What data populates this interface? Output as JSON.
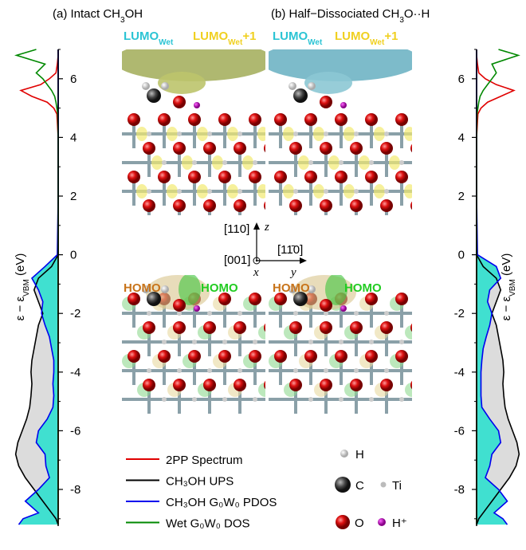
{
  "chart_data": {
    "type": "line",
    "panel_titles": [
      [
        "(a) Intact CH",
        "3",
        "OH"
      ],
      [
        "(b) Half−Dissociated CH",
        "3",
        "O··H"
      ]
    ],
    "y_label": [
      "ε − ε",
      "VBM",
      " (eV)"
    ],
    "ylim": [
      -9.25,
      7.0
    ],
    "yticks": [
      -8,
      -6,
      -4,
      -2,
      0,
      2,
      4,
      6
    ],
    "minor_yticks": [
      -9,
      -7,
      -5,
      -3,
      -1,
      1,
      3,
      5,
      7
    ],
    "energies": [
      7.0,
      6.8,
      6.5,
      6.2,
      6.0,
      5.8,
      5.6,
      5.4,
      5.2,
      5.0,
      4.8,
      4.0,
      2.0,
      0.0,
      -0.4,
      -0.8,
      -1.2,
      -1.6,
      -2.0,
      -2.4,
      -2.8,
      -3.2,
      -3.6,
      -4.0,
      -4.4,
      -4.8,
      -5.2,
      -5.6,
      -6.0,
      -6.4,
      -6.8,
      -7.2,
      -7.6,
      -8.0,
      -8.4,
      -8.8,
      -9.0,
      -9.2
    ],
    "series": [
      {
        "name": "2PP Spectrum",
        "color": "#e00000",
        "left": [
          0,
          0,
          0.02,
          0.05,
          0.2,
          0.4,
          0.85,
          0.6,
          0.25,
          0.1,
          0.03,
          0,
          0,
          0,
          0,
          0,
          0,
          0,
          0,
          0,
          0,
          0,
          0,
          0,
          0,
          0,
          0,
          0,
          0,
          0,
          0,
          0,
          0,
          0,
          0,
          0,
          0,
          0
        ],
        "right": [
          0,
          0,
          0.02,
          0.05,
          0.2,
          0.45,
          0.85,
          0.55,
          0.25,
          0.1,
          0.03,
          0,
          0,
          0,
          0,
          0,
          0,
          0,
          0,
          0,
          0,
          0,
          0,
          0,
          0,
          0,
          0,
          0,
          0,
          0,
          0,
          0,
          0,
          0,
          0,
          0,
          0,
          0
        ]
      },
      {
        "name": "CH₃OH UPS",
        "color": "#000000",
        "fill": "#dcdcdc",
        "left": [
          0,
          0,
          0,
          0,
          0,
          0,
          0,
          0,
          0,
          0,
          0,
          0,
          0,
          0,
          0.15,
          0.45,
          0.55,
          0.45,
          0.35,
          0.45,
          0.5,
          0.55,
          0.6,
          0.62,
          0.6,
          0.62,
          0.65,
          0.72,
          0.82,
          0.92,
          0.97,
          0.9,
          0.75,
          0.55,
          0.35,
          0.15,
          0.05,
          0
        ],
        "right": [
          0,
          0,
          0,
          0,
          0,
          0,
          0,
          0,
          0,
          0,
          0,
          0,
          0,
          0,
          0.15,
          0.45,
          0.55,
          0.45,
          0.35,
          0.45,
          0.5,
          0.55,
          0.6,
          0.62,
          0.6,
          0.62,
          0.65,
          0.72,
          0.82,
          0.92,
          0.97,
          0.9,
          0.75,
          0.55,
          0.35,
          0.15,
          0.05,
          0
        ]
      },
      {
        "name": "CH₃OH  G₀W₀ PDOS",
        "color": "#0000ee",
        "fill": "#40e0d0",
        "left": [
          0,
          0,
          0,
          0,
          0,
          0,
          0,
          0,
          0,
          0,
          0,
          0,
          0,
          0.02,
          0.3,
          0.6,
          0.45,
          0.35,
          0.38,
          0.3,
          0.2,
          0.15,
          0.1,
          0.1,
          0.12,
          0.1,
          0.12,
          0.25,
          0.45,
          0.5,
          0.3,
          0.28,
          0.2,
          0.45,
          0.75,
          0.45,
          0.8,
          0.9
        ],
        "right": [
          0,
          0,
          0,
          0,
          0,
          0,
          0,
          0,
          0,
          0,
          0,
          0,
          0,
          0.02,
          0.45,
          0.55,
          0.3,
          0.25,
          0.35,
          0.3,
          0.22,
          0.15,
          0.12,
          0.1,
          0.1,
          0.1,
          0.12,
          0.3,
          0.5,
          0.55,
          0.35,
          0.3,
          0.2,
          0.5,
          0.7,
          0.4,
          0.6,
          0.7
        ]
      },
      {
        "name": "Wet  G₀W₀ DOS",
        "color": "#008800",
        "left": [
          0.5,
          0.95,
          0.3,
          0.5,
          0.35,
          0.25,
          0.15,
          0.08,
          0.05,
          0.03,
          0.01,
          0,
          0,
          0,
          0,
          0,
          0,
          0,
          0,
          0,
          0,
          0,
          0,
          0,
          0,
          0,
          0,
          0,
          0,
          0,
          0,
          0,
          0,
          0,
          0,
          0,
          0,
          0
        ],
        "right": [
          0.5,
          0.95,
          0.35,
          0.45,
          0.35,
          0.25,
          0.15,
          0.08,
          0.05,
          0.03,
          0.01,
          0,
          0,
          0,
          0,
          0,
          0,
          0,
          0,
          0,
          0,
          0,
          0,
          0,
          0,
          0,
          0,
          0,
          0,
          0,
          0,
          0,
          0,
          0,
          0,
          0,
          0,
          0
        ]
      }
    ],
    "orbital_labels": [
      {
        "parts": [
          "LUMO",
          "Wet"
        ],
        "color": "#2bc4d4"
      },
      {
        "parts": [
          "LUMO",
          "Wet",
          "+1"
        ],
        "color": "#f0d020"
      },
      {
        "parts": [
          "HOMO"
        ],
        "color": "#c8741a"
      },
      {
        "parts": [
          "HOMO"
        ],
        "color": "#22cc22"
      }
    ],
    "axes_labels": {
      "z_dir": "[110]",
      "z": "z",
      "x_dir": "[001]",
      "x": "x",
      "y_dir": "[11̄0]",
      "y": "y"
    },
    "atoms": [
      "H",
      "C",
      "Ti",
      "O",
      "H⁺"
    ]
  }
}
